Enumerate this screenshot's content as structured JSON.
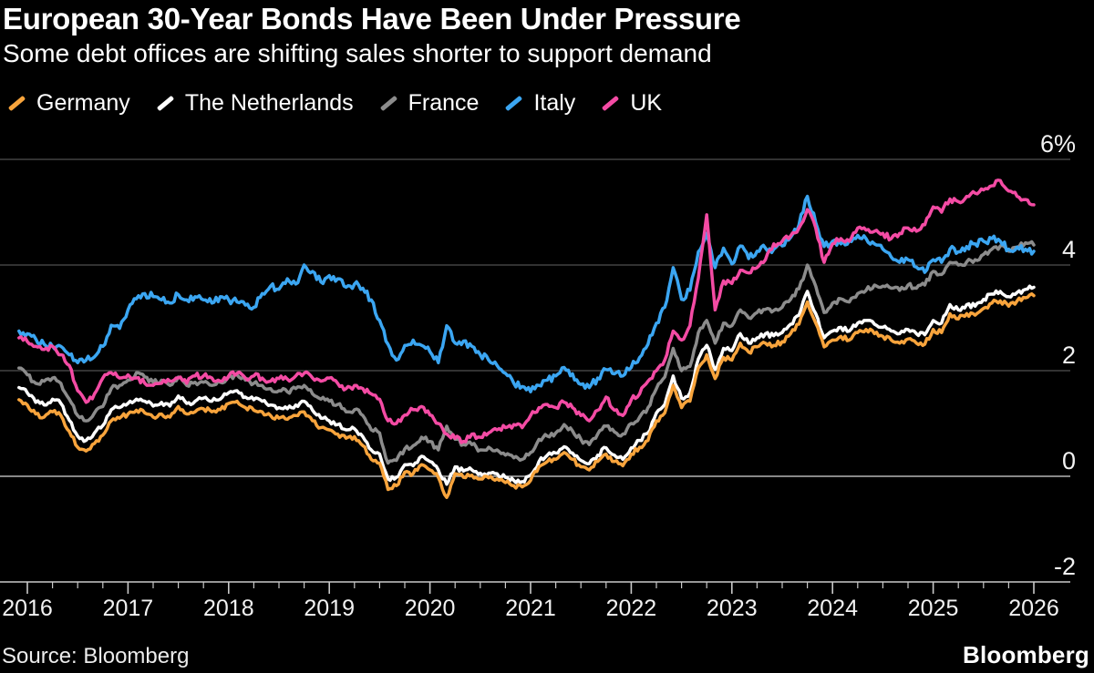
{
  "footer": {
    "source": "Source: Bloomberg",
    "logo": "Bloomberg"
  },
  "style": {
    "background": "#000000",
    "text": "#ffffff",
    "grid_color": "#4f4f4f",
    "zero_line_color": "#b5b5b5",
    "axis_color": "#c9c9c9",
    "tick_label_color": "#f2f2f2"
  },
  "chart_data": {
    "type": "line",
    "title": "European 30-Year Bonds Have Been Under Pressure",
    "subtitle": "Some debt offices are shifting sales shorter to support demand",
    "unit": "%",
    "frequency": "monthly",
    "x_start": "2015-12",
    "x_end": "2026-01",
    "xlim": [
      2015.92,
      2026.05
    ],
    "ylim": [
      -2,
      6
    ],
    "grid": "horizontal",
    "legend_position": "top",
    "y_ticks": [
      {
        "value": 6,
        "label": "6%"
      },
      {
        "value": 4,
        "label": "4"
      },
      {
        "value": 2,
        "label": "2"
      },
      {
        "value": 0,
        "label": "0"
      },
      {
        "value": -2,
        "label": "-2"
      }
    ],
    "x_tick_years": [
      2016,
      2017,
      2018,
      2019,
      2020,
      2021,
      2022,
      2023,
      2024,
      2025,
      2026
    ],
    "series": [
      {
        "name": "France",
        "color": "#8C8C8C",
        "values": [
          2.05,
          1.92,
          1.76,
          1.8,
          1.86,
          1.76,
          1.46,
          1.15,
          1.05,
          1.2,
          1.32,
          1.66,
          1.72,
          1.82,
          1.96,
          1.88,
          1.78,
          1.82,
          1.72,
          1.88,
          1.72,
          1.78,
          1.78,
          1.72,
          1.78,
          1.88,
          1.92,
          1.82,
          1.76,
          1.72,
          1.66,
          1.62,
          1.6,
          1.66,
          1.72,
          1.56,
          1.46,
          1.42,
          1.36,
          1.22,
          1.26,
          1.15,
          0.88,
          0.82,
          0.25,
          0.3,
          0.52,
          0.58,
          0.74,
          0.66,
          0.5,
          0.95,
          0.7,
          0.6,
          0.6,
          0.5,
          0.55,
          0.5,
          0.4,
          0.35,
          0.32,
          0.45,
          0.7,
          0.76,
          0.82,
          0.98,
          0.86,
          0.7,
          0.6,
          0.8,
          0.95,
          0.84,
          0.8,
          1.0,
          1.12,
          1.3,
          1.66,
          1.88,
          2.42,
          2.0,
          2.08,
          2.72,
          2.95,
          2.52,
          2.9,
          2.85,
          3.15,
          3.0,
          3.1,
          3.16,
          3.14,
          3.2,
          3.35,
          3.55,
          4.0,
          3.6,
          3.1,
          3.28,
          3.36,
          3.3,
          3.46,
          3.52,
          3.62,
          3.6,
          3.56,
          3.52,
          3.62,
          3.56,
          3.62,
          3.88,
          3.82,
          4.05,
          4.0,
          4.06,
          4.1,
          4.2,
          4.3,
          4.36,
          4.26,
          4.34,
          4.42,
          4.38
        ]
      },
      {
        "name": "Italy",
        "color": "#3BA6F2",
        "values": [
          2.75,
          2.7,
          2.6,
          2.5,
          2.46,
          2.46,
          2.3,
          2.15,
          2.2,
          2.26,
          2.46,
          2.86,
          2.8,
          3.15,
          3.36,
          3.46,
          3.4,
          3.34,
          3.28,
          3.44,
          3.34,
          3.4,
          3.34,
          3.28,
          3.4,
          3.34,
          3.3,
          3.24,
          3.2,
          3.46,
          3.6,
          3.54,
          3.74,
          3.64,
          4.0,
          3.88,
          3.68,
          3.8,
          3.74,
          3.58,
          3.64,
          3.56,
          3.34,
          2.95,
          2.5,
          2.2,
          2.48,
          2.58,
          2.48,
          2.36,
          2.15,
          2.85,
          2.52,
          2.56,
          2.46,
          2.3,
          2.2,
          2.1,
          1.95,
          1.76,
          1.7,
          1.6,
          1.72,
          1.82,
          1.9,
          2.06,
          1.94,
          1.74,
          1.68,
          1.86,
          2.02,
          1.94,
          1.9,
          2.06,
          2.25,
          2.5,
          2.9,
          3.2,
          3.95,
          3.35,
          3.52,
          4.25,
          4.6,
          3.95,
          4.32,
          4.02,
          4.36,
          4.12,
          4.26,
          4.32,
          4.3,
          4.36,
          4.52,
          4.76,
          5.3,
          4.8,
          4.35,
          4.45,
          4.4,
          4.46,
          4.56,
          4.5,
          4.4,
          4.3,
          4.15,
          4.05,
          4.1,
          3.96,
          3.86,
          4.1,
          4.05,
          4.3,
          4.25,
          4.35,
          4.4,
          4.45,
          4.5,
          4.45,
          4.3,
          4.34,
          4.3,
          4.26
        ]
      },
      {
        "name": "UK",
        "color": "#F44BA4",
        "values": [
          2.62,
          2.55,
          2.46,
          2.4,
          2.46,
          2.3,
          2.1,
          1.62,
          1.4,
          1.56,
          1.86,
          1.96,
          1.86,
          1.92,
          1.86,
          1.76,
          1.72,
          1.76,
          1.8,
          1.86,
          1.76,
          1.9,
          1.9,
          1.86,
          1.8,
          1.9,
          1.95,
          1.86,
          1.9,
          1.86,
          1.8,
          1.85,
          1.84,
          1.9,
          1.95,
          1.86,
          1.8,
          1.86,
          1.76,
          1.66,
          1.72,
          1.66,
          1.56,
          1.46,
          1.05,
          1.0,
          1.16,
          1.26,
          1.32,
          1.16,
          1.0,
          0.8,
          0.72,
          0.66,
          0.8,
          0.74,
          0.82,
          0.88,
          0.92,
          0.98,
          0.92,
          1.15,
          1.3,
          1.36,
          1.3,
          1.4,
          1.3,
          1.15,
          1.05,
          1.25,
          1.5,
          1.25,
          1.15,
          1.45,
          1.56,
          1.8,
          2.0,
          2.2,
          2.75,
          2.58,
          2.85,
          3.75,
          4.95,
          3.15,
          3.7,
          3.65,
          3.9,
          3.85,
          3.95,
          4.1,
          4.4,
          4.45,
          4.55,
          4.7,
          5.05,
          4.7,
          4.05,
          4.4,
          4.5,
          4.45,
          4.7,
          4.66,
          4.64,
          4.6,
          4.5,
          4.6,
          4.7,
          4.64,
          4.76,
          5.1,
          5.0,
          5.25,
          5.2,
          5.3,
          5.36,
          5.42,
          5.5,
          5.6,
          5.4,
          5.3,
          5.24,
          5.14
        ]
      },
      {
        "name": "The Netherlands",
        "color": "#FFFFFF",
        "values": [
          1.68,
          1.58,
          1.4,
          1.35,
          1.46,
          1.38,
          1.06,
          0.76,
          0.68,
          0.82,
          0.96,
          1.26,
          1.3,
          1.38,
          1.46,
          1.42,
          1.33,
          1.4,
          1.33,
          1.52,
          1.38,
          1.42,
          1.48,
          1.42,
          1.46,
          1.58,
          1.62,
          1.5,
          1.45,
          1.42,
          1.35,
          1.3,
          1.28,
          1.35,
          1.42,
          1.25,
          1.1,
          1.05,
          0.98,
          0.88,
          0.9,
          0.75,
          0.5,
          0.42,
          -0.05,
          -0.02,
          0.22,
          0.2,
          0.38,
          0.28,
          0.12,
          -0.15,
          0.18,
          0.1,
          0.12,
          0.06,
          0.06,
          0.05,
          -0.02,
          -0.08,
          -0.1,
          0.02,
          0.28,
          0.4,
          0.44,
          0.56,
          0.44,
          0.3,
          0.24,
          0.4,
          0.54,
          0.4,
          0.32,
          0.54,
          0.68,
          0.82,
          1.2,
          1.36,
          1.9,
          1.48,
          1.58,
          2.22,
          2.48,
          2.02,
          2.42,
          2.38,
          2.7,
          2.52,
          2.62,
          2.7,
          2.66,
          2.72,
          2.88,
          3.05,
          3.5,
          3.08,
          2.62,
          2.75,
          2.82,
          2.75,
          2.9,
          2.95,
          2.88,
          2.82,
          2.75,
          2.7,
          2.78,
          2.7,
          2.68,
          2.95,
          2.9,
          3.25,
          3.15,
          3.25,
          3.22,
          3.35,
          3.45,
          3.5,
          3.4,
          3.48,
          3.54,
          3.58
        ]
      },
      {
        "name": "Germany",
        "color": "#F8A43C",
        "values": [
          1.45,
          1.35,
          1.18,
          1.12,
          1.22,
          1.15,
          0.85,
          0.55,
          0.48,
          0.62,
          0.78,
          1.05,
          1.1,
          1.18,
          1.25,
          1.2,
          1.12,
          1.18,
          1.12,
          1.32,
          1.18,
          1.22,
          1.28,
          1.22,
          1.26,
          1.38,
          1.42,
          1.3,
          1.25,
          1.22,
          1.15,
          1.1,
          1.08,
          1.15,
          1.22,
          1.05,
          0.92,
          0.88,
          0.8,
          0.72,
          0.75,
          0.58,
          0.32,
          0.25,
          -0.25,
          -0.18,
          0.08,
          0.05,
          0.22,
          0.12,
          -0.02,
          -0.4,
          0.05,
          -0.02,
          0.02,
          -0.05,
          -0.03,
          -0.05,
          -0.12,
          -0.18,
          -0.2,
          -0.08,
          0.18,
          0.28,
          0.32,
          0.45,
          0.32,
          0.18,
          0.12,
          0.28,
          0.42,
          0.28,
          0.2,
          0.42,
          0.55,
          0.68,
          1.05,
          1.2,
          1.72,
          1.3,
          1.42,
          2.05,
          2.3,
          1.85,
          2.25,
          2.2,
          2.52,
          2.35,
          2.45,
          2.52,
          2.48,
          2.55,
          2.7,
          2.88,
          3.3,
          2.9,
          2.45,
          2.58,
          2.65,
          2.58,
          2.72,
          2.78,
          2.7,
          2.65,
          2.58,
          2.52,
          2.6,
          2.52,
          2.5,
          2.78,
          2.72,
          3.08,
          2.98,
          3.08,
          3.05,
          3.18,
          3.28,
          3.32,
          3.22,
          3.32,
          3.38,
          3.42
        ]
      }
    ],
    "legend": [
      {
        "label": "Germany",
        "color": "#F8A43C"
      },
      {
        "label": "The Netherlands",
        "color": "#FFFFFF"
      },
      {
        "label": "France",
        "color": "#8C8C8C"
      },
      {
        "label": "Italy",
        "color": "#3BA6F2"
      },
      {
        "label": "UK",
        "color": "#F44BA4"
      }
    ]
  }
}
